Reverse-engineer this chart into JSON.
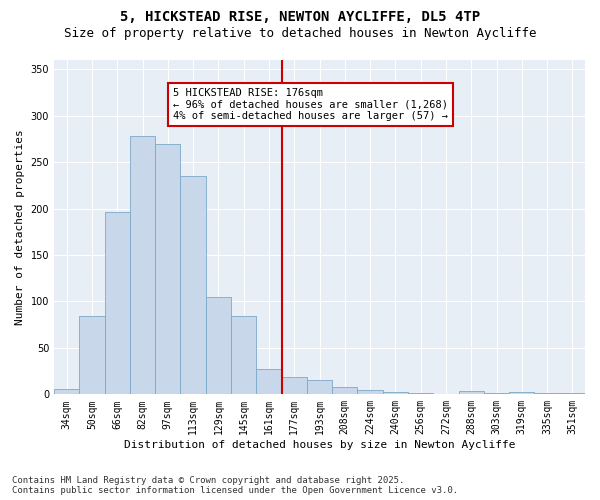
{
  "title1": "5, HICKSTEAD RISE, NEWTON AYCLIFFE, DL5 4TP",
  "title2": "Size of property relative to detached houses in Newton Aycliffe",
  "xlabel": "Distribution of detached houses by size in Newton Aycliffe",
  "ylabel": "Number of detached properties",
  "categories": [
    "34sqm",
    "50sqm",
    "66sqm",
    "82sqm",
    "97sqm",
    "113sqm",
    "129sqm",
    "145sqm",
    "161sqm",
    "177sqm",
    "193sqm",
    "208sqm",
    "224sqm",
    "240sqm",
    "256sqm",
    "272sqm",
    "288sqm",
    "303sqm",
    "319sqm",
    "335sqm",
    "351sqm"
  ],
  "bar_values": [
    6,
    84,
    196,
    278,
    270,
    235,
    105,
    84,
    27,
    19,
    15,
    8,
    5,
    2,
    1,
    0,
    4,
    1,
    2,
    1,
    1
  ],
  "bar_color": "#c8d8ea",
  "bar_edge_color": "#7ba8c8",
  "vline_x": 8.5,
  "vline_color": "#cc0000",
  "annotation_text": "5 HICKSTEAD RISE: 176sqm\n← 96% of detached houses are smaller (1,268)\n4% of semi-detached houses are larger (57) →",
  "annotation_box_color": "#ffffff",
  "annotation_box_edge_color": "#cc0000",
  "ylim": [
    0,
    360
  ],
  "yticks": [
    0,
    50,
    100,
    150,
    200,
    250,
    300,
    350
  ],
  "fig_bg_color": "#ffffff",
  "plot_bg_color": "#e8eef6",
  "grid_color": "#ffffff",
  "footer": "Contains HM Land Registry data © Crown copyright and database right 2025.\nContains public sector information licensed under the Open Government Licence v3.0.",
  "title1_fontsize": 10,
  "title2_fontsize": 9,
  "xlabel_fontsize": 8,
  "ylabel_fontsize": 8,
  "tick_fontsize": 7,
  "annotation_fontsize": 7.5,
  "footer_fontsize": 6.5
}
